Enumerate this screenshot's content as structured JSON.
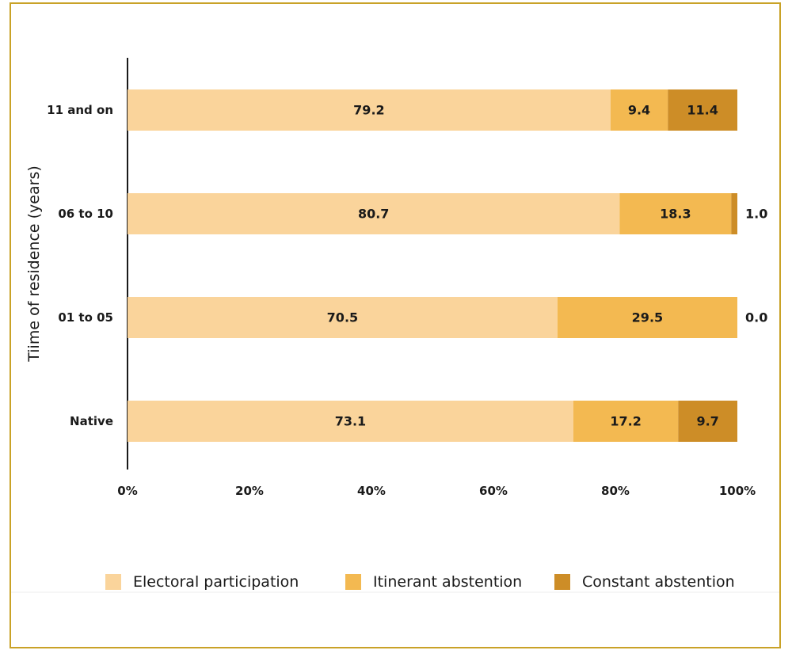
{
  "chart_data": {
    "type": "bar",
    "orientation": "horizontal",
    "stacked": true,
    "categories": [
      "11 and on",
      "06 to 10",
      "01 to 05",
      "Native"
    ],
    "series": [
      {
        "name": "Electoral participation",
        "values": [
          79.2,
          80.7,
          70.5,
          73.1
        ],
        "color": "#fad49b"
      },
      {
        "name": "Itinerant abstention",
        "values": [
          9.4,
          18.3,
          29.5,
          17.2
        ],
        "color": "#f3b951"
      },
      {
        "name": "Constant abstention",
        "values": [
          11.4,
          1.0,
          0.0,
          9.7
        ],
        "color": "#cd8d27"
      }
    ],
    "xlim": [
      0,
      100
    ],
    "xticks": [
      "0%",
      "20%",
      "40%",
      "60%",
      "80%",
      "100%"
    ],
    "xlabel": "",
    "ylabel": "Tiime of residence (years)",
    "legend_position": "bottom",
    "grid": false,
    "frame_color": "#c9a227"
  }
}
